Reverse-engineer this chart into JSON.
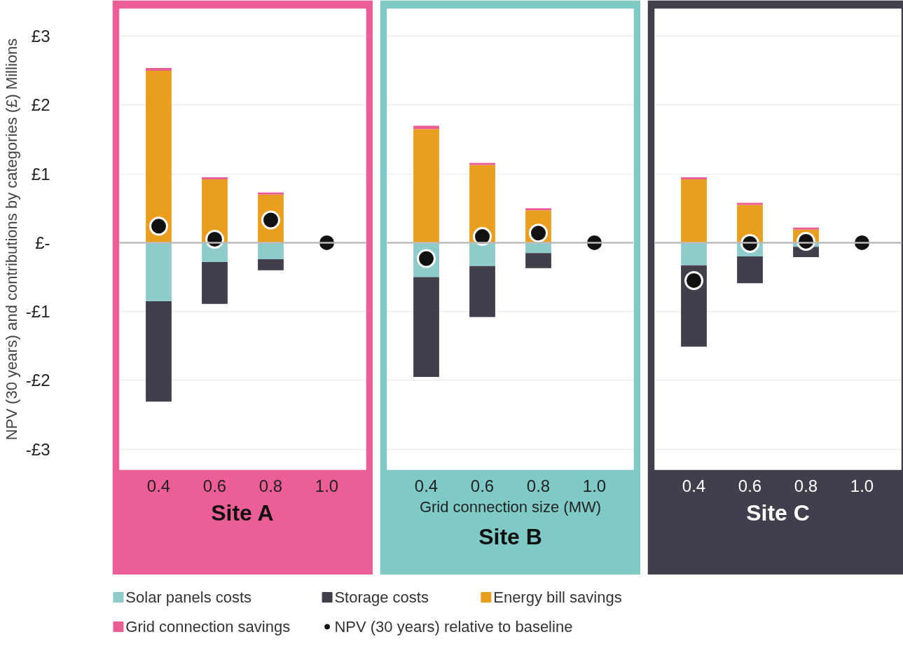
{
  "chart_data": [
    {
      "type": "bar",
      "title": "Site A",
      "ylabel": "NPV (30 years) and contributions by categories (£) Millions",
      "categories": [
        "0.4",
        "0.6",
        "0.8",
        "1.0"
      ],
      "stacked": true,
      "ylim": [
        -3.3,
        3.4
      ],
      "yticks": [
        {
          "value": -3,
          "label": "-£3"
        },
        {
          "value": -2,
          "label": "-£2"
        },
        {
          "value": -1,
          "label": "-£1"
        },
        {
          "value": 0,
          "label": "£-"
        },
        {
          "value": 1,
          "label": "£1"
        },
        {
          "value": 2,
          "label": "£2"
        },
        {
          "value": 3,
          "label": "£3"
        }
      ],
      "grid": "y",
      "legend": "bottom",
      "marker": "circle",
      "ref_lines": [
        {
          "axis": "y",
          "value": 0,
          "color": "#bbbbbb"
        }
      ],
      "series": [
        {
          "name": "Solar panels costs",
          "color": "#8ecbcb",
          "values": [
            -0.85,
            -0.28,
            -0.24,
            0
          ]
        },
        {
          "name": "Storage costs",
          "color": "#403f4b",
          "values": [
            -1.46,
            -0.61,
            -0.16,
            0
          ]
        },
        {
          "name": "Energy bill savings",
          "color": "#ea9e1e",
          "values": [
            2.5,
            0.92,
            0.7,
            0
          ]
        },
        {
          "name": "Grid connection savings",
          "color": "#e95f94",
          "values": [
            0.04,
            0.03,
            0.03,
            0
          ]
        },
        {
          "name": "NPV (30 years) relative to baseline",
          "type": "scatter",
          "color": "#111111",
          "values": [
            0.24,
            0.05,
            0.33,
            0
          ]
        }
      ]
    },
    {
      "type": "bar",
      "title": "Site B",
      "xlabel": "Grid connection size (MW)",
      "categories": [
        "0.4",
        "0.6",
        "0.8",
        "1.0"
      ],
      "stacked": true,
      "ylim": [
        -3.3,
        3.4
      ],
      "yticks": [
        -3,
        -2,
        -1,
        0,
        1,
        2,
        3
      ],
      "tick_labels": "x",
      "grid": "y",
      "marker": "circle",
      "ref_lines": [
        {
          "axis": "y",
          "value": 0,
          "color": "#bbbbbb"
        }
      ],
      "series": [
        {
          "color": "#8ecbcb",
          "values": [
            -0.5,
            -0.34,
            -0.15,
            0
          ]
        },
        {
          "color": "#403f4b",
          "values": [
            -1.45,
            -0.74,
            -0.22,
            0
          ]
        },
        {
          "color": "#ea9e1e",
          "values": [
            1.65,
            1.13,
            0.47,
            0
          ]
        },
        {
          "color": "#e95f94",
          "values": [
            0.05,
            0.03,
            0.03,
            0
          ]
        },
        {
          "type": "scatter",
          "color": "#111111",
          "values": [
            -0.23,
            0.09,
            0.14,
            0
          ]
        }
      ]
    },
    {
      "type": "bar",
      "title": "Site C",
      "categories": [
        "0.4",
        "0.6",
        "0.8",
        "1.0"
      ],
      "stacked": true,
      "ylim": [
        -3.3,
        3.4
      ],
      "yticks": [
        -3,
        -2,
        -1,
        0,
        1,
        2,
        3
      ],
      "tick_labels": "x",
      "grid": "y",
      "marker": "circle",
      "ref_lines": [
        {
          "axis": "y",
          "value": 0,
          "color": "#bbbbbb"
        }
      ],
      "series": [
        {
          "color": "#8ecbcb",
          "values": [
            -0.33,
            -0.2,
            -0.06,
            0
          ]
        },
        {
          "color": "#403f4b",
          "values": [
            -1.18,
            -0.39,
            -0.15,
            0
          ]
        },
        {
          "color": "#ea9e1e",
          "values": [
            0.92,
            0.55,
            0.19,
            0
          ]
        },
        {
          "color": "#e95f94",
          "values": [
            0.03,
            0.03,
            0.03,
            0
          ]
        },
        {
          "type": "scatter",
          "color": "#111111",
          "values": [
            -0.55,
            -0.01,
            0.02,
            0
          ]
        }
      ]
    }
  ]
}
